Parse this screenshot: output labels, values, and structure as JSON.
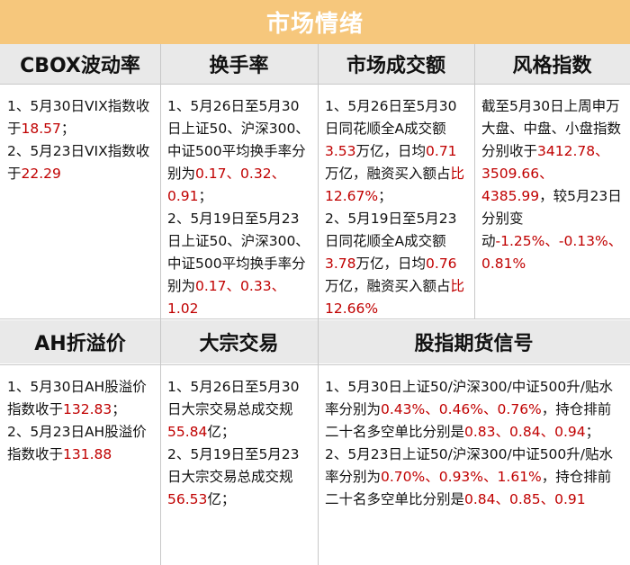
{
  "banner": {
    "title": "市场情绪"
  },
  "row1": {
    "cbox": {
      "header": "CBOX波动率",
      "p1_a": "1、5月30日VIX指数收于",
      "p1_v": "18.57",
      "p1_b": "；",
      "p2_a": "2、5月23日VIX指数收于",
      "p2_v": "22.29"
    },
    "turnover": {
      "header": "换手率",
      "p1_a": "1、5月26日至5月30日上证50、沪深300、中证500平均换手率分别为",
      "p1_v1": "0.17",
      "p1_s1": "、",
      "p1_v2": "0.32",
      "p1_s2": "、",
      "p1_v3": "0.91",
      "p1_b": "；",
      "p2_a": "2、5月19日至5月23日上证50、沪深300、中证500平均换手率分别为",
      "p2_v1": "0.17",
      "p2_s1": "、",
      "p2_v2": "0.33",
      "p2_s2": "、",
      "p2_v3": "1.02"
    },
    "volume": {
      "header": "市场成交额",
      "p1_a": "1、5月26日至5月30日同花顺全A成交额",
      "p1_v1": "3.53",
      "p1_b": "万亿，日均",
      "p1_v2": "0.71",
      "p1_c": "万亿，融资买入额占",
      "p1_v3": "比12.67%",
      "p1_d": "；",
      "p2_a": "2、5月19日至5月23日同花顺全A成交额",
      "p2_v1": "3.78",
      "p2_b": "万亿，日均",
      "p2_v2": "0.76",
      "p2_c": "万亿，融资买入额占",
      "p2_v3": "比12.66%"
    },
    "style": {
      "header": "风格指数",
      "a": "截至5月30日上周申万大盘、中盘、小盘指数分别收于",
      "v1": "3412.78",
      "s1": "、",
      "v2": "3509.66",
      "s2": "、",
      "v3": "4385.99",
      "b": "，较5月23日分别变动",
      "c1": "-1.25%",
      "s3": "、",
      "c2": "-0.13%",
      "s4": "、",
      "c3": "0.81%"
    }
  },
  "row2": {
    "ah": {
      "header": "AH折溢价",
      "p1_a": "1、5月30日AH股溢价指数收于",
      "p1_v": "132.83",
      "p1_b": "；",
      "p2_a": "2、5月23日AH股溢价指数收于",
      "p2_v": "131.88"
    },
    "block": {
      "header": "大宗交易",
      "p1_a": "1、5月26日至5月30日大宗交易总成交规",
      "p1_v": "55.84",
      "p1_b": "亿；",
      "p2_a": "2、5月19日至5月23日大宗交易总成交规",
      "p2_v": "56.53",
      "p2_b": "亿；"
    },
    "futures": {
      "header": "股指期货信号",
      "p1_a": "1、5月30日上证50/沪深300/中证500升/贴水率分别为",
      "p1_v1": "0.43%",
      "p1_s1": "、",
      "p1_v2": "0.46%",
      "p1_s2": "、",
      "p1_v3": "0.76%",
      "p1_b": "，持仓排前二十名多空单比分别是",
      "p1_r1": "0.83",
      "p1_s3": "、",
      "p1_r2": "0.84",
      "p1_s4": "、",
      "p1_r3": "0.94",
      "p1_c": "；",
      "p2_a": "2、5月23日上证50/沪深300/中证500升/贴水率分别为",
      "p2_v1": "0.70%",
      "p2_s1": "、",
      "p2_v2": "0.93%",
      "p2_s2": "、",
      "p2_v3": "1.61%",
      "p2_b": "，持仓排前二十名多空单比分别是",
      "p2_r1": "0.84",
      "p2_s3": "、",
      "p2_r2": "0.85",
      "p2_s4": "、",
      "p2_r3": "0.91"
    }
  },
  "colors": {
    "banner": "#f6c77c",
    "header_bg": "#e9e9e9",
    "value_red": "#c00000"
  }
}
